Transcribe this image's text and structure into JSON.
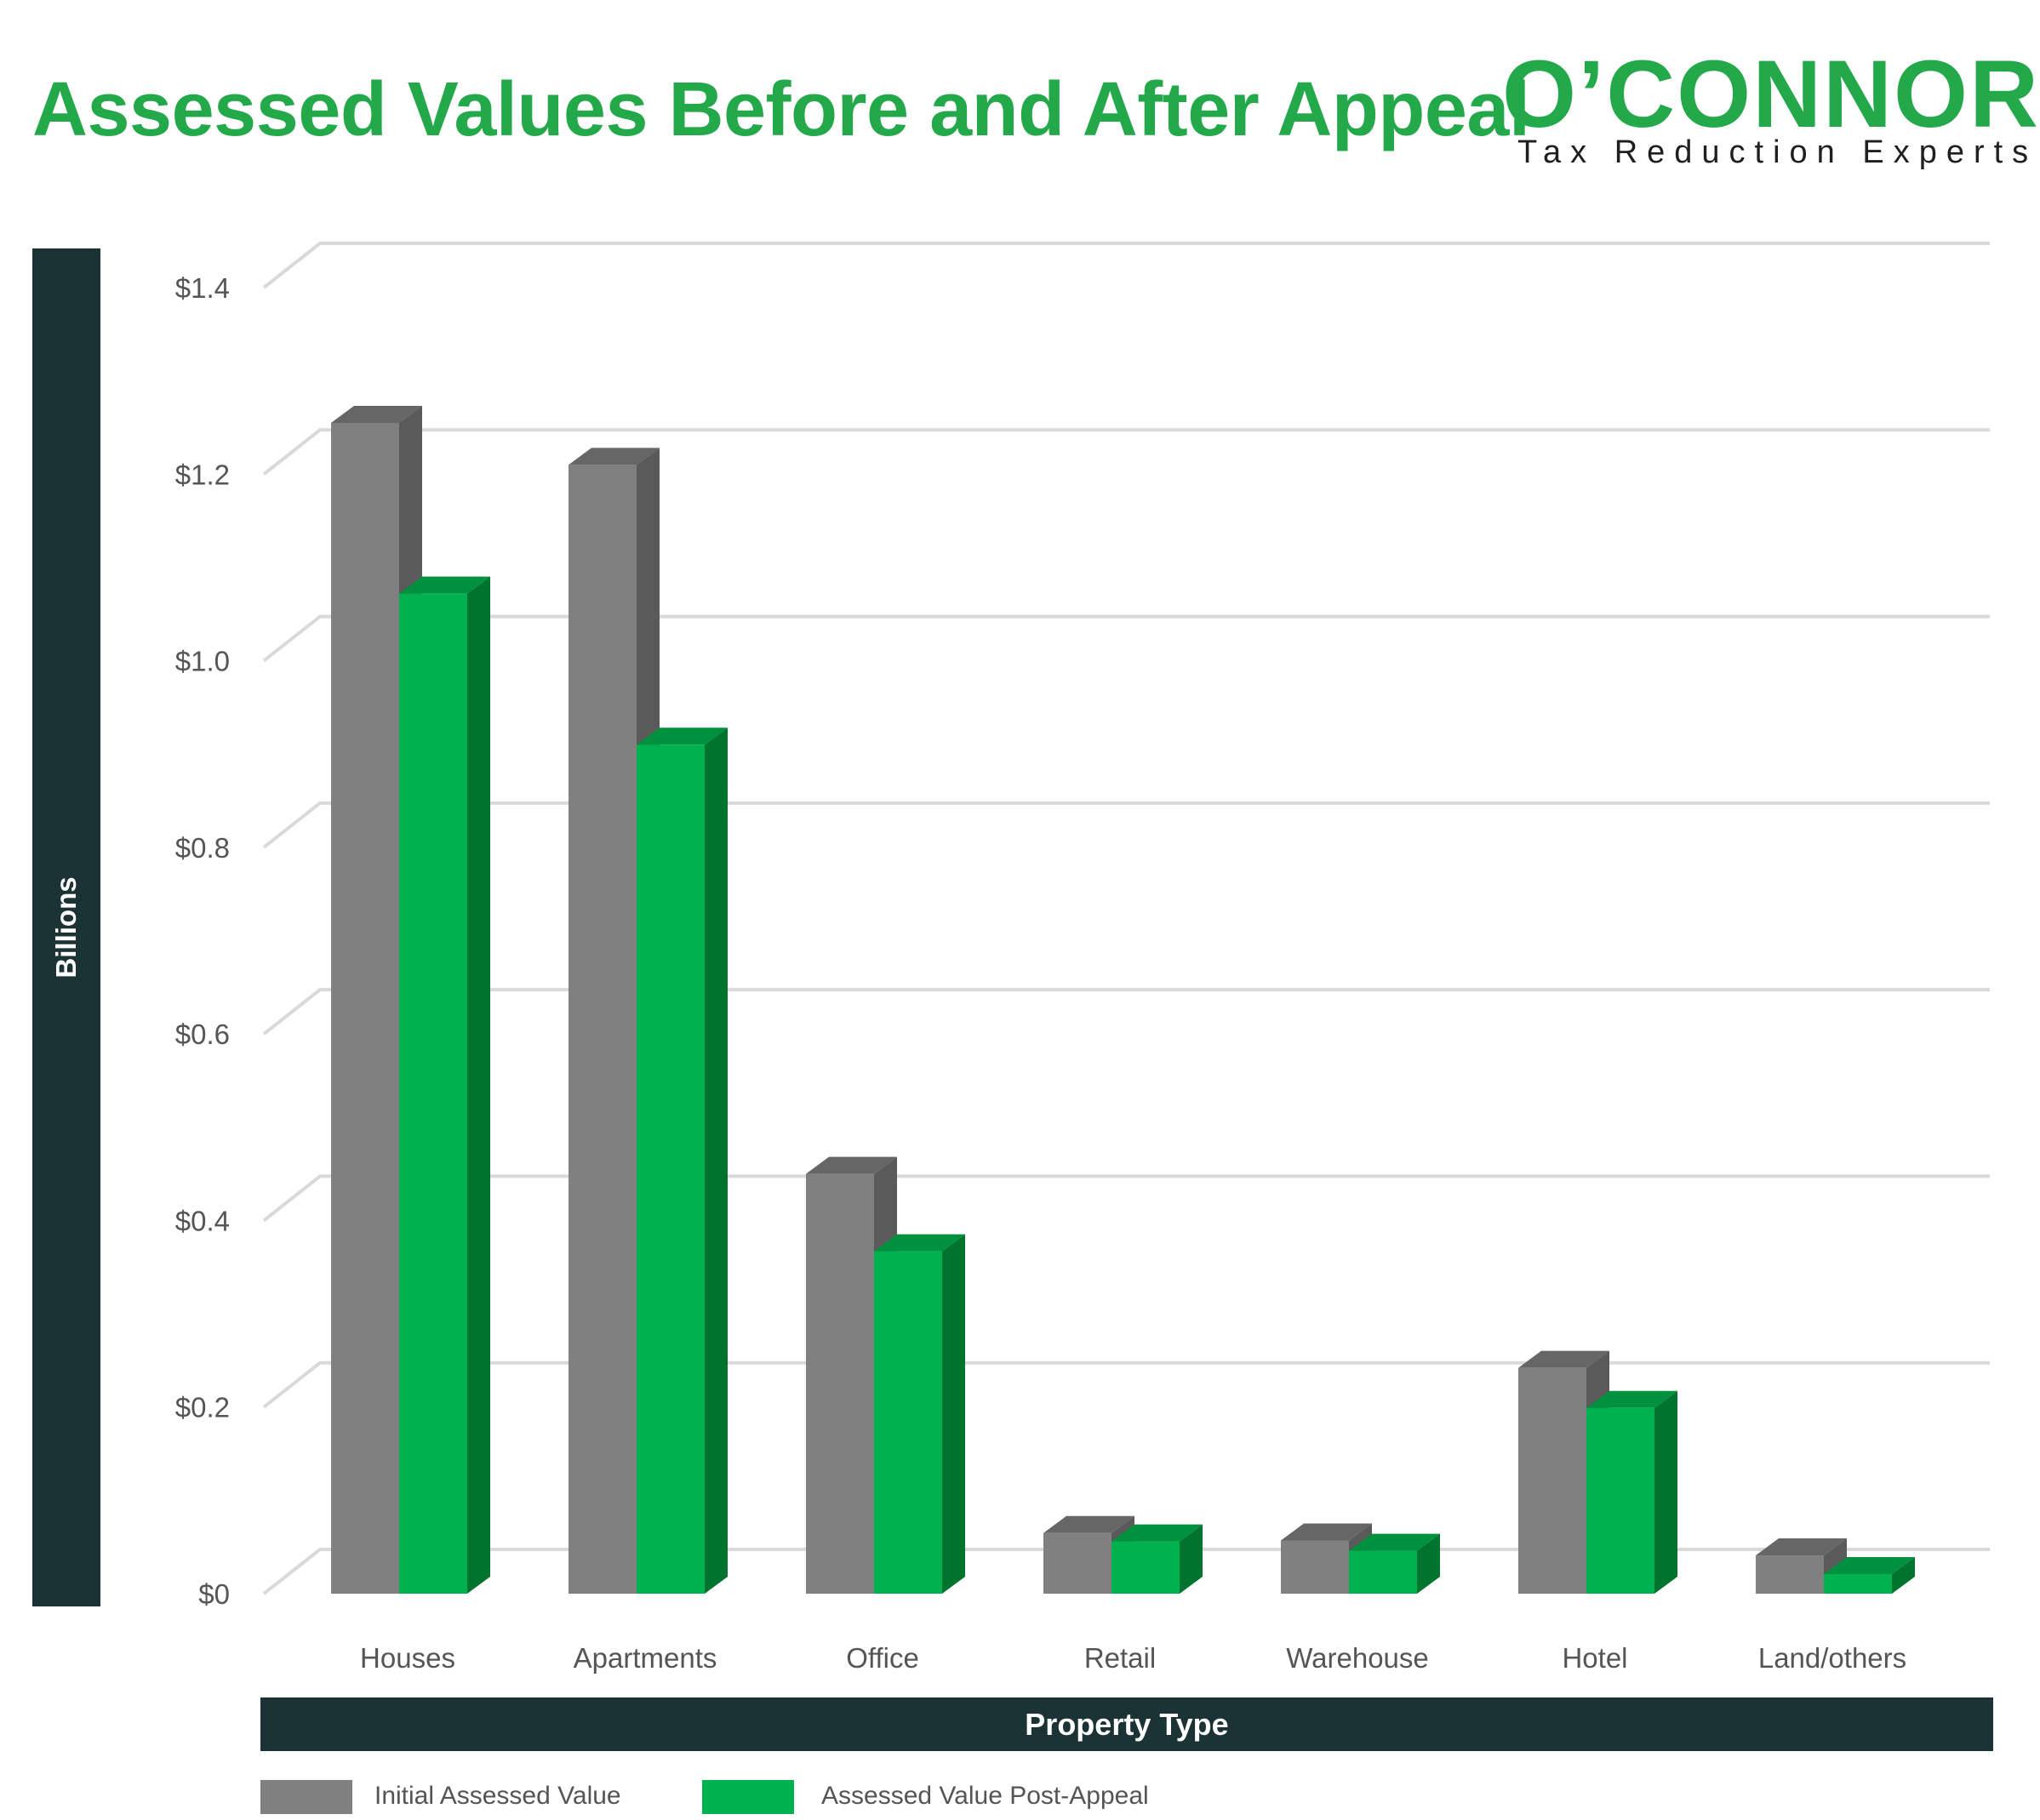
{
  "header": {
    "title": "Assessed Values Before and After Appeal"
  },
  "logo": {
    "wordmark": "O’CONNOR",
    "tagline": "Tax Reduction Experts"
  },
  "colors": {
    "title_green": "#23a84a",
    "dark_panel": "#1c3336",
    "initial_front": "#808080",
    "initial_side": "#5a5a5a",
    "initial_top": "#666666",
    "post_front": "#00b14f",
    "post_side": "#00732e",
    "post_top": "#00913e",
    "gridline": "#d9d9d9",
    "tick_text": "#555555"
  },
  "chart_data": {
    "type": "bar",
    "title": "Assessed Values Before and After Appeal",
    "xlabel": "Property Type",
    "ylabel": "Billions",
    "ylim": [
      0,
      1.4
    ],
    "yticks": [
      0,
      0.2,
      0.4,
      0.6,
      0.8,
      1.0,
      1.2,
      1.4
    ],
    "ytick_labels": [
      "$0",
      "$0.2",
      "$0.4",
      "$0.6",
      "$0.8",
      "$1.0",
      "$1.2",
      "$1.4"
    ],
    "categories": [
      "Houses",
      "Apartments",
      "Office",
      "Retail",
      "Warehouse",
      "Hotel",
      "Land/others"
    ],
    "series": [
      {
        "name": "Initial Assessed Value",
        "values": [
          1.255,
          1.21,
          0.45,
          0.065,
          0.057,
          0.242,
          0.041
        ]
      },
      {
        "name": "Assessed Value Post-Appeal",
        "values": [
          1.072,
          0.91,
          0.367,
          0.056,
          0.046,
          0.199,
          0.021
        ]
      }
    ],
    "grid": true,
    "legend_position": "bottom-left"
  }
}
